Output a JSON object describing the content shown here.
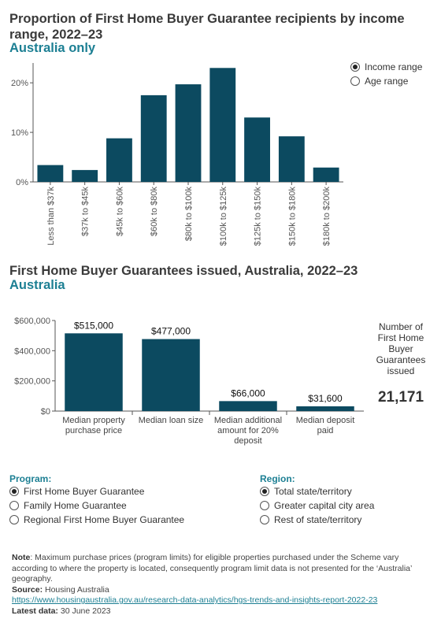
{
  "chart1": {
    "title": "Proportion of First Home Buyer Guarantee recipients by income range, 2022–23",
    "subtitle": "Australia only",
    "toggle": [
      {
        "label": "Income range",
        "selected": true
      },
      {
        "label": "Age range",
        "selected": false
      }
    ]
  },
  "chart2": {
    "title": "First Home Buyer Guarantees issued, Australia, 2022–23",
    "subtitle": "Australia",
    "count_label": [
      "Number of",
      "First Home",
      "Buyer",
      "Guarantees",
      "issued"
    ],
    "count_value": "21,171"
  },
  "program": {
    "label": "Program:",
    "options": [
      {
        "label": "First Home Buyer Guarantee",
        "selected": true
      },
      {
        "label": "Family Home Guarantee",
        "selected": false
      },
      {
        "label": "Regional First Home Buyer Guarantee",
        "selected": false
      }
    ]
  },
  "region": {
    "label": "Region:",
    "options": [
      {
        "label": "Total state/territory",
        "selected": true
      },
      {
        "label": "Greater capital city area",
        "selected": false
      },
      {
        "label": "Rest of state/territory",
        "selected": false
      }
    ]
  },
  "footer": {
    "note_label": "Note",
    "note_text": ": Maximum purchase prices (program limits) for eligible properties purchased under the Scheme vary according to where the property is located, consequently program limit data is not presented for the ‘Australia’ geography.",
    "source_label": "Source:",
    "source_text": " Housing Australia",
    "url": "https://www.housingaustralia.gov.au/research-data-analytics/hgs-trends-and-insights-report-2022-23",
    "latest_label": "Latest data:",
    "latest_text": " 30 June 2023"
  },
  "colors": {
    "bar": "#0c4a60",
    "accent": "#1c7f93"
  },
  "chart_data": [
    {
      "type": "bar",
      "categories": [
        "Less than $37k",
        "$37k to $45k",
        "$45k to $60k",
        "$60k to $80k",
        "$80k to $100k",
        "$100k to $125k",
        "$125k to $150k",
        "$150k to $180k",
        "$180k to $200k"
      ],
      "values": [
        3.4,
        2.4,
        8.8,
        17.5,
        19.7,
        23.0,
        13.0,
        9.2,
        2.9
      ],
      "yticks": [
        "0%",
        "10%",
        "20%"
      ],
      "ytick_values": [
        0,
        10,
        20
      ],
      "ylim": [
        0,
        24
      ]
    },
    {
      "type": "bar",
      "categories": [
        [
          "Median property",
          "purchase price"
        ],
        [
          "Median loan size"
        ],
        [
          "Median additional",
          "amount for 20%",
          "deposit"
        ],
        [
          "Median deposit",
          "paid"
        ]
      ],
      "values": [
        515000,
        477000,
        66000,
        31600
      ],
      "data_labels": [
        "$515,000",
        "$477,000",
        "$66,000",
        "$31,600"
      ],
      "yticks": [
        "$0",
        "$200,000",
        "$400,000",
        "$600,000"
      ],
      "ytick_values": [
        0,
        200000,
        400000,
        600000
      ],
      "ylim": [
        0,
        600000
      ]
    }
  ]
}
